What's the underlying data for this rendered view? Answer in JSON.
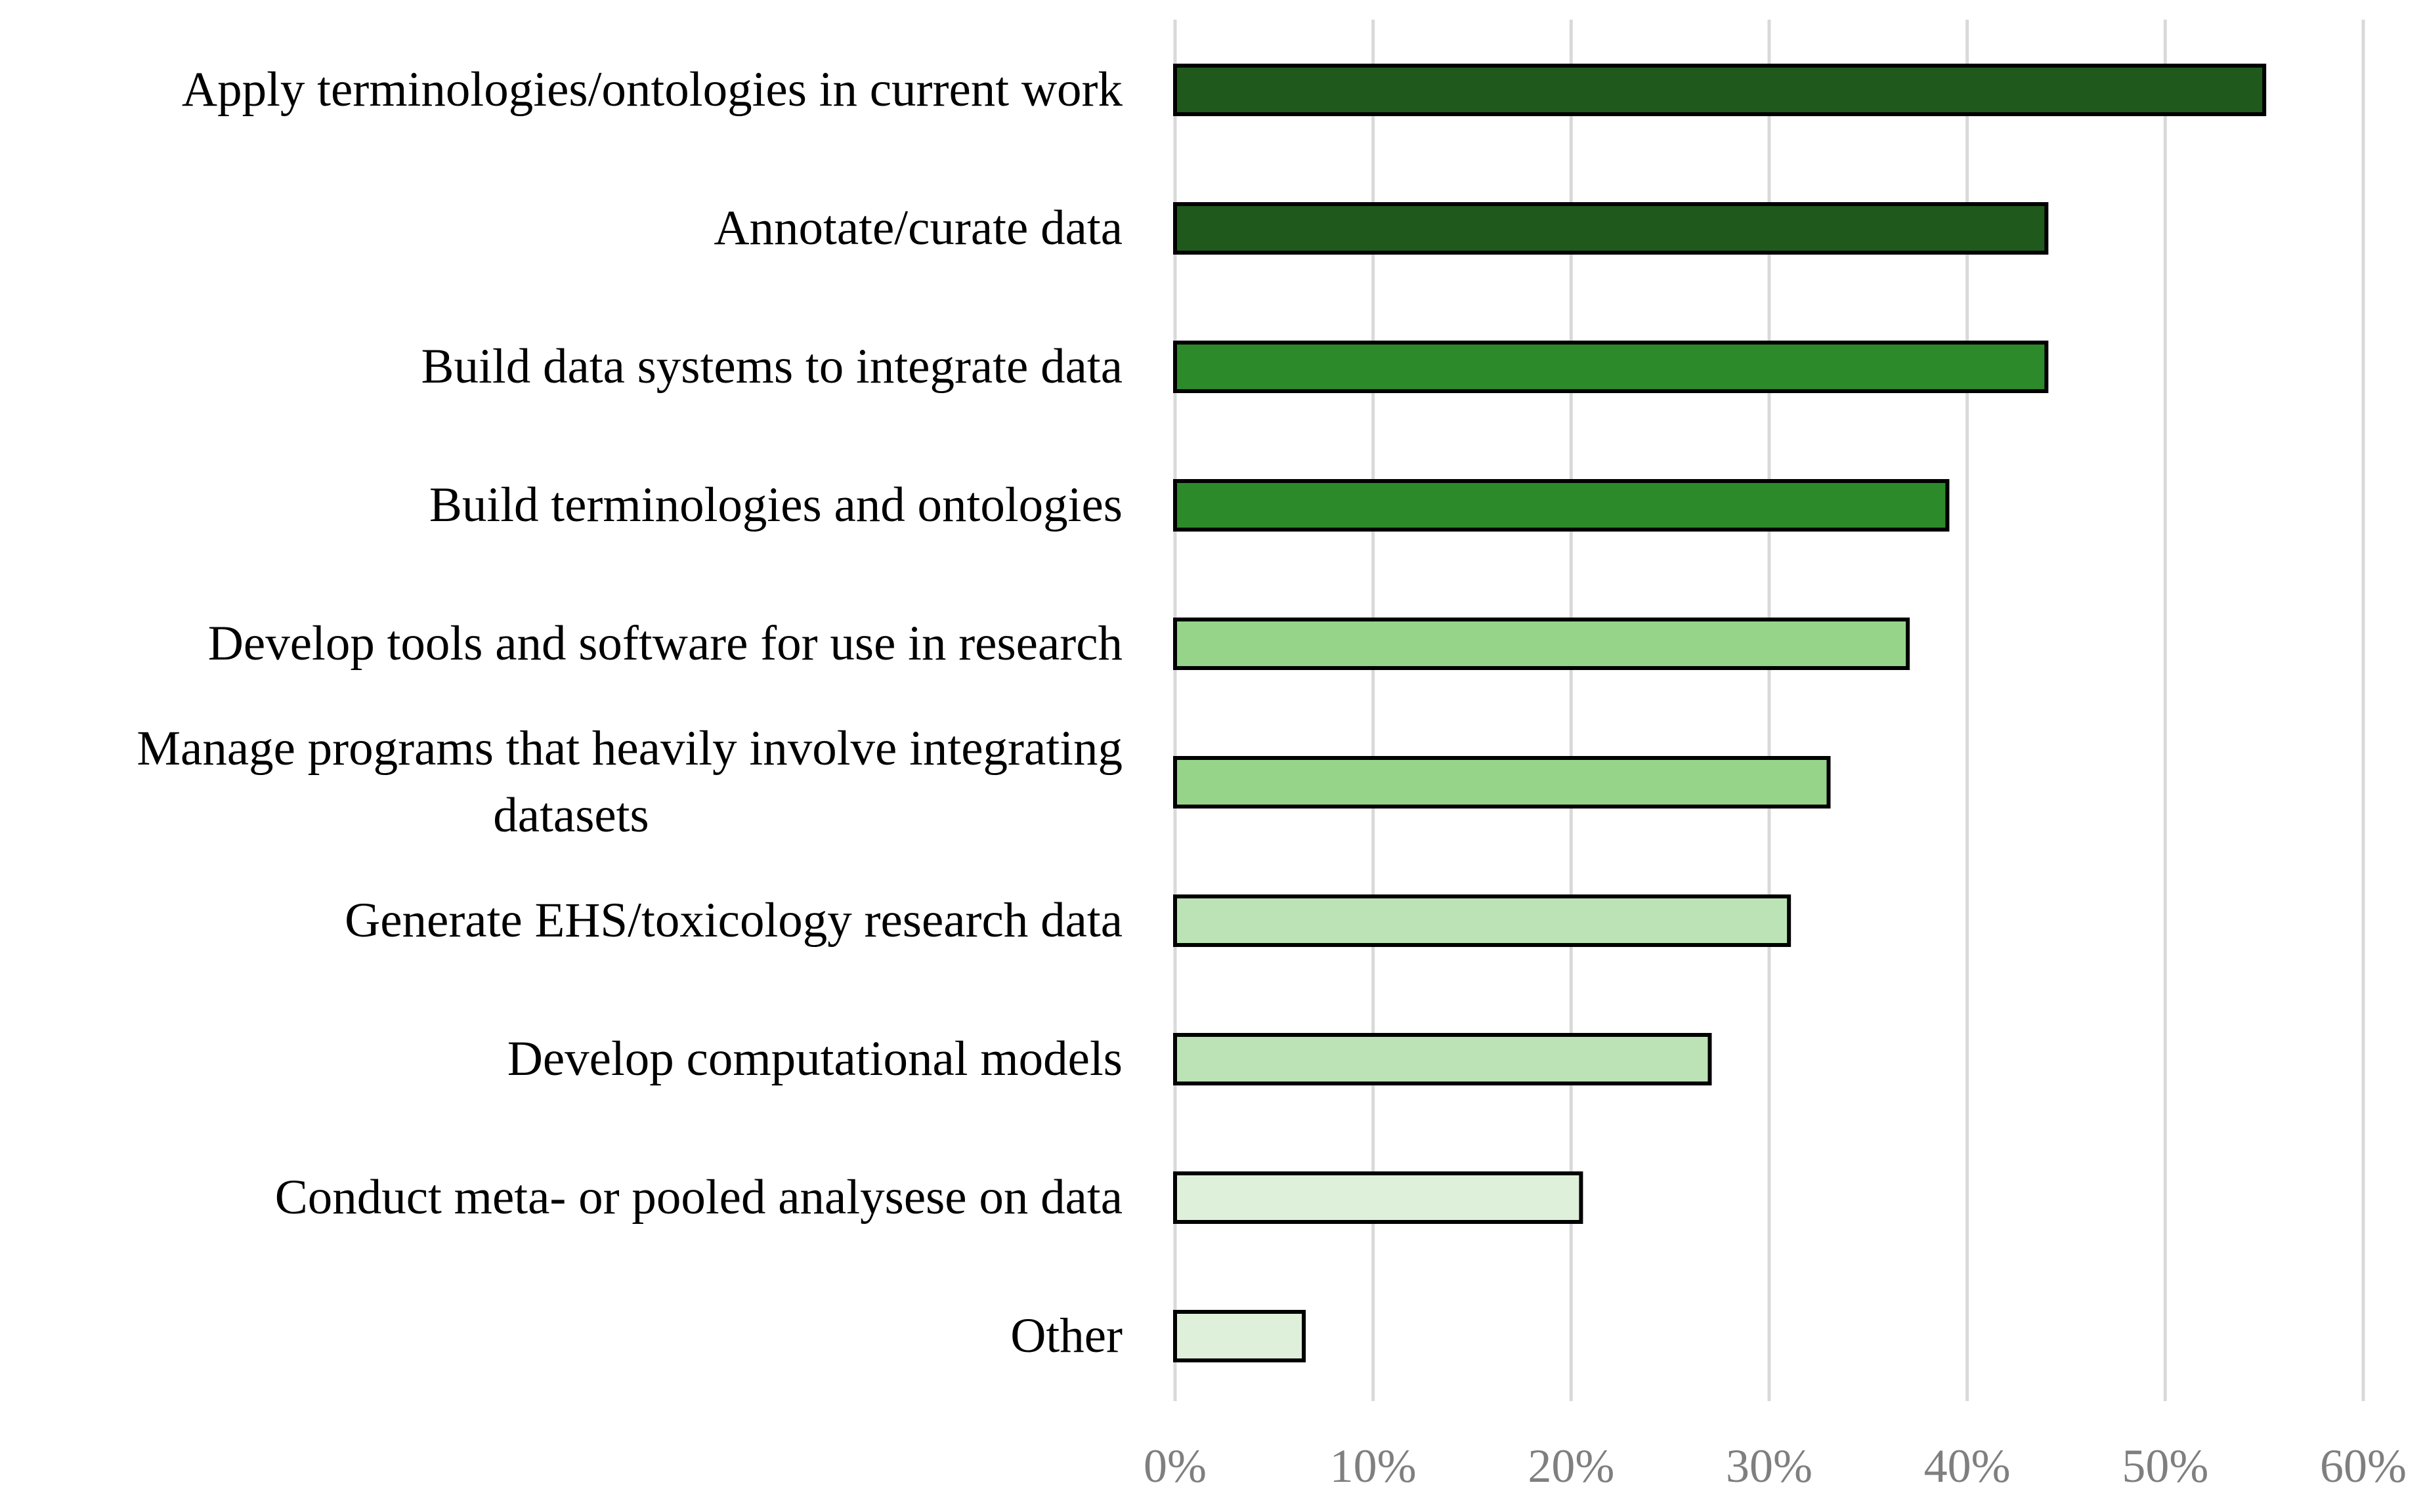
{
  "chart_data": {
    "type": "bar",
    "orientation": "horizontal",
    "title": "",
    "xlabel": "",
    "ylabel": "",
    "xlim": [
      0,
      60
    ],
    "value_format": "percent",
    "grid": "vertical",
    "legend": "none",
    "tick_values": [
      0,
      10,
      20,
      30,
      40,
      50,
      60
    ],
    "tick_labels": [
      "0%",
      "10%",
      "20%",
      "30%",
      "40%",
      "50%",
      "60%"
    ],
    "categories": [
      [
        "Apply terminologies/ontologies in current work"
      ],
      [
        "Annotate/curate data"
      ],
      [
        "Build data systems to integrate data"
      ],
      [
        "Build terminologies and ontologies"
      ],
      [
        "Develop tools and software for use in research"
      ],
      [
        "Manage programs that heavily involve integrating",
        "datasets"
      ],
      [
        "Generate EHS/toxicology research data"
      ],
      [
        "Develop computational models"
      ],
      [
        "Conduct meta- or pooled analysese on data"
      ],
      [
        "Other"
      ]
    ],
    "values": [
      55,
      44,
      44,
      39,
      37,
      33,
      31,
      27,
      20.5,
      6.5
    ],
    "bar_colors": [
      "#1f5a1c",
      "#1f5a1c",
      "#2d8a2a",
      "#2d8a2a",
      "#96d48a",
      "#96d48a",
      "#bce3b5",
      "#bce3b5",
      "#dff0da",
      "#dff0da"
    ],
    "bar_outline": "#000000",
    "grid_color": "#d9d9d9"
  }
}
